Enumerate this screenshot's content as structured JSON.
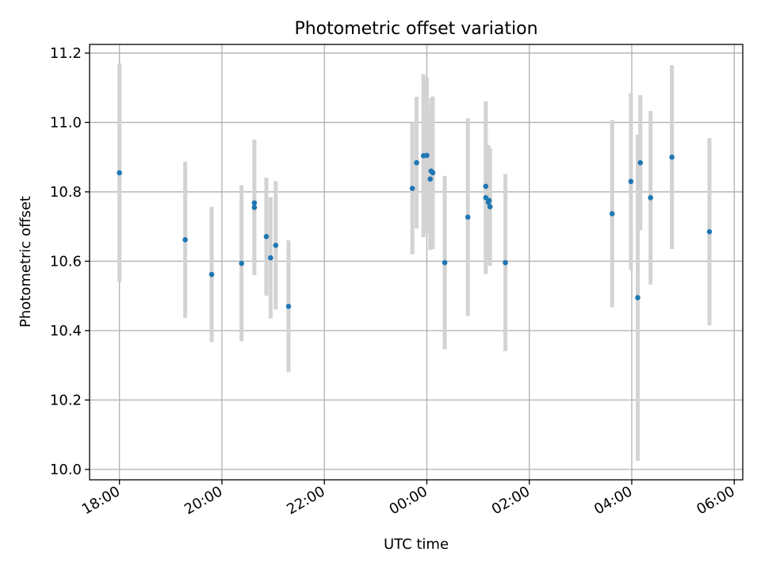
{
  "chart_data": {
    "type": "scatter",
    "title": "Photometric offset variation",
    "xlabel": "UTC time",
    "ylabel": "Photometric offset",
    "x_start_time": "17:25",
    "x_end_time": "06:10",
    "ylim": [
      9.97,
      11.225
    ],
    "y_ticks": [
      10.0,
      10.2,
      10.4,
      10.6,
      10.8,
      11.0,
      11.2
    ],
    "y_tick_labels": [
      "10.0",
      "10.2",
      "10.4",
      "10.6",
      "10.8",
      "11.0",
      "11.2"
    ],
    "x_ticks": [
      "18:00",
      "20:00",
      "22:00",
      "00:00",
      "02:00",
      "04:00",
      "06:00"
    ],
    "grid": true,
    "colors": {
      "point": "#1f77b4",
      "errorbar": "#d3d3d3",
      "grid": "#b0b0b0"
    },
    "series": [
      {
        "points": [
          {
            "t": "18:00",
            "y": 10.855,
            "err": 0.315
          },
          {
            "t": "19:17",
            "y": 10.662,
            "err": 0.225
          },
          {
            "t": "19:48",
            "y": 10.562,
            "err": 0.195
          },
          {
            "t": "20:23",
            "y": 10.594,
            "err": 0.225
          },
          {
            "t": "20:38",
            "y": 10.768,
            "err": 0.18
          },
          {
            "t": "20:38",
            "y": 10.755,
            "err": 0.195
          },
          {
            "t": "20:52",
            "y": 10.671,
            "err": 0.17
          },
          {
            "t": "20:57",
            "y": 10.61,
            "err": 0.175
          },
          {
            "t": "21:03",
            "y": 10.646,
            "err": 0.185
          },
          {
            "t": "21:18",
            "y": 10.47,
            "err": 0.19
          },
          {
            "t": "23:43",
            "y": 10.81,
            "err": 0.19
          },
          {
            "t": "23:48",
            "y": 10.884,
            "err": 0.19
          },
          {
            "t": "23:56",
            "y": 10.904,
            "err": 0.235
          },
          {
            "t": "00:00",
            "y": 10.905,
            "err": 0.225
          },
          {
            "t": "00:04",
            "y": 10.837,
            "err": 0.205
          },
          {
            "t": "00:05",
            "y": 10.86,
            "err": 0.21
          },
          {
            "t": "00:07",
            "y": 10.855,
            "err": 0.22
          },
          {
            "t": "00:21",
            "y": 10.596,
            "err": 0.25
          },
          {
            "t": "00:48",
            "y": 10.727,
            "err": 0.285
          },
          {
            "t": "01:09",
            "y": 10.816,
            "err": 0.245
          },
          {
            "t": "01:09",
            "y": 10.783,
            "err": 0.22
          },
          {
            "t": "01:12",
            "y": 10.77,
            "err": 0.165
          },
          {
            "t": "01:13",
            "y": 10.775,
            "err": 0.15
          },
          {
            "t": "01:14",
            "y": 10.757,
            "err": 0.17
          },
          {
            "t": "01:32",
            "y": 10.596,
            "err": 0.255
          },
          {
            "t": "03:37",
            "y": 10.737,
            "err": 0.27
          },
          {
            "t": "03:59",
            "y": 10.83,
            "err": 0.255
          },
          {
            "t": "04:07",
            "y": 10.495,
            "err": 0.47
          },
          {
            "t": "04:10",
            "y": 10.884,
            "err": 0.195
          },
          {
            "t": "04:22",
            "y": 10.783,
            "err": 0.25
          },
          {
            "t": "04:47",
            "y": 10.9,
            "err": 0.265
          },
          {
            "t": "05:31",
            "y": 10.685,
            "err": 0.27
          }
        ]
      }
    ]
  }
}
